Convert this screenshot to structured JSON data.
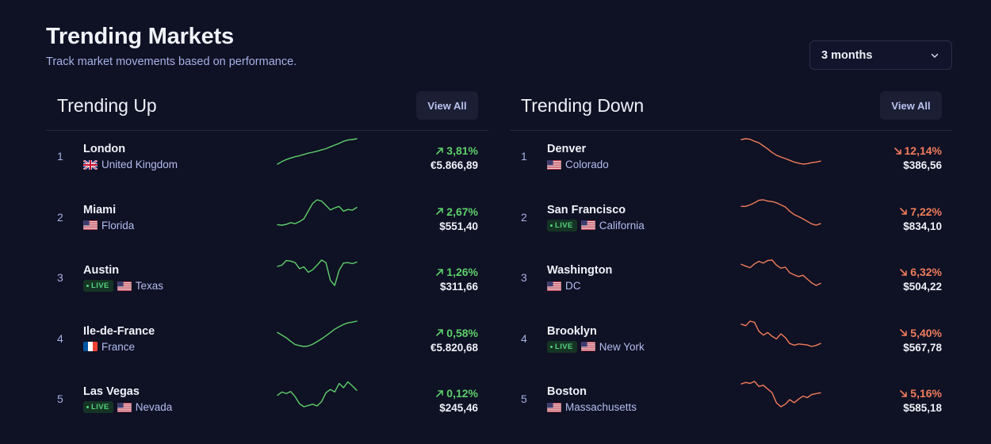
{
  "header": {
    "title": "Trending Markets",
    "subtitle": "Track market movements based on performance."
  },
  "range_select": {
    "value": "3 months"
  },
  "trending_up": {
    "title": "Trending Up",
    "view_all_label": "View All",
    "color": "#5dd06a",
    "rows": [
      {
        "rank": "1",
        "city": "London",
        "live": false,
        "flag": "gb",
        "region": "United Kingdom",
        "change": "3,81%",
        "price": "€5.866,89",
        "trend": [
          0.0,
          0.1,
          0.18,
          0.24,
          0.29,
          0.33,
          0.38,
          0.43,
          0.47,
          0.51,
          0.56,
          0.61,
          0.68,
          0.75,
          0.82,
          0.9,
          0.95,
          0.97,
          1.0
        ]
      },
      {
        "rank": "2",
        "city": "Miami",
        "live": false,
        "flag": "us",
        "region": "Florida",
        "change": "2,67%",
        "price": "$551,40",
        "trend": [
          0.02,
          0.0,
          0.03,
          0.1,
          0.06,
          0.14,
          0.25,
          0.56,
          0.86,
          1.0,
          0.95,
          0.78,
          0.6,
          0.68,
          0.74,
          0.55,
          0.62,
          0.59,
          0.7
        ]
      },
      {
        "rank": "3",
        "city": "Austin",
        "live": true,
        "live_label": "LIVE",
        "flag": "us",
        "region": "Texas",
        "change": "1,26%",
        "price": "$311,66",
        "trend": [
          0.75,
          0.8,
          0.98,
          0.96,
          0.9,
          0.66,
          0.73,
          0.52,
          0.62,
          0.8,
          1.0,
          0.9,
          0.2,
          0.0,
          0.6,
          0.88,
          0.9,
          0.86,
          0.92
        ]
      },
      {
        "rank": "4",
        "city": "Ile-de-France",
        "live": false,
        "flag": "fr",
        "region": "France",
        "change": "0,58%",
        "price": "€5.820,68",
        "trend": [
          0.55,
          0.45,
          0.34,
          0.2,
          0.08,
          0.03,
          0.0,
          0.02,
          0.09,
          0.19,
          0.3,
          0.42,
          0.55,
          0.68,
          0.78,
          0.87,
          0.93,
          0.96,
          1.0
        ]
      },
      {
        "rank": "5",
        "city": "Las Vegas",
        "live": true,
        "live_label": "LIVE",
        "flag": "us",
        "region": "Nevada",
        "change": "0,12%",
        "price": "$245,46",
        "trend": [
          0.45,
          0.58,
          0.52,
          0.6,
          0.4,
          0.12,
          0.0,
          0.05,
          0.1,
          0.03,
          0.2,
          0.55,
          0.68,
          0.58,
          0.92,
          0.75,
          0.98,
          0.82,
          0.65
        ]
      }
    ]
  },
  "trending_down": {
    "title": "Trending Down",
    "view_all_label": "View All",
    "color": "#f07d5c",
    "rows": [
      {
        "rank": "1",
        "city": "Denver",
        "live": false,
        "flag": "us",
        "region": "Colorado",
        "change": "12,14%",
        "price": "$386,56",
        "trend": [
          0.97,
          1.0,
          0.98,
          0.9,
          0.84,
          0.72,
          0.6,
          0.46,
          0.35,
          0.28,
          0.22,
          0.15,
          0.08,
          0.04,
          0.0,
          0.02,
          0.06,
          0.08,
          0.12
        ]
      },
      {
        "rank": "2",
        "city": "San Francisco",
        "live": true,
        "live_label": "LIVE",
        "flag": "us",
        "region": "California",
        "change": "7,22%",
        "price": "$834,10",
        "trend": [
          0.74,
          0.74,
          0.8,
          0.88,
          0.98,
          1.0,
          0.95,
          0.93,
          0.88,
          0.8,
          0.72,
          0.55,
          0.42,
          0.34,
          0.25,
          0.15,
          0.05,
          0.0,
          0.06
        ]
      },
      {
        "rank": "3",
        "city": "Washington",
        "live": false,
        "flag": "us",
        "region": "DC",
        "change": "6,32%",
        "price": "$504,22",
        "trend": [
          0.83,
          0.76,
          0.7,
          0.85,
          0.95,
          0.88,
          0.98,
          1.0,
          0.8,
          0.68,
          0.72,
          0.5,
          0.42,
          0.35,
          0.4,
          0.25,
          0.1,
          0.0,
          0.08
        ]
      },
      {
        "rank": "4",
        "city": "Brooklyn",
        "live": true,
        "live_label": "LIVE",
        "flag": "us",
        "region": "New York",
        "change": "5,40%",
        "price": "$567,78",
        "trend": [
          0.88,
          0.82,
          1.0,
          0.95,
          0.6,
          0.45,
          0.55,
          0.4,
          0.3,
          0.5,
          0.35,
          0.12,
          0.05,
          0.1,
          0.08,
          0.06,
          0.0,
          0.04,
          0.12
        ]
      },
      {
        "rank": "5",
        "city": "Boston",
        "live": false,
        "flag": "us",
        "region": "Massachusetts",
        "change": "5,16%",
        "price": "$585,18",
        "trend": [
          0.9,
          0.96,
          0.92,
          1.0,
          0.8,
          0.85,
          0.7,
          0.55,
          0.15,
          0.0,
          0.1,
          0.28,
          0.16,
          0.3,
          0.42,
          0.36,
          0.48,
          0.52,
          0.55
        ]
      }
    ]
  }
}
